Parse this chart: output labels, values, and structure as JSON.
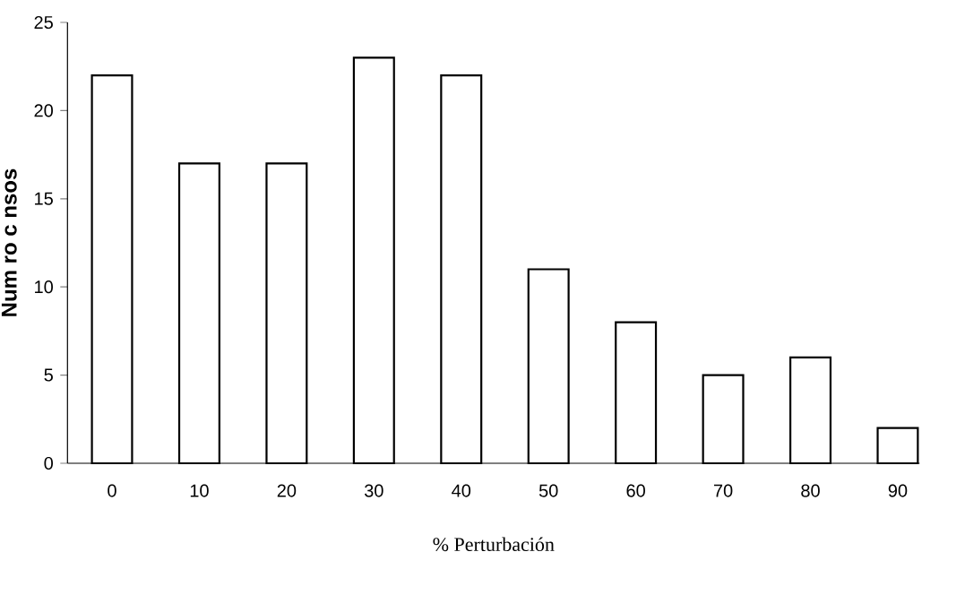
{
  "chart_data": {
    "type": "bar",
    "xlabel": "% Perturbación",
    "ylabel": "Num ro c nsos",
    "categories": [
      "0",
      "10",
      "20",
      "30",
      "40",
      "50",
      "60",
      "70",
      "80",
      "90"
    ],
    "values": [
      22,
      17,
      17,
      23,
      22,
      11,
      8,
      5,
      6,
      2
    ],
    "color": "#000000",
    "ylim": [
      0,
      25
    ],
    "yticks": [
      0,
      5,
      10,
      15,
      20,
      25
    ]
  }
}
